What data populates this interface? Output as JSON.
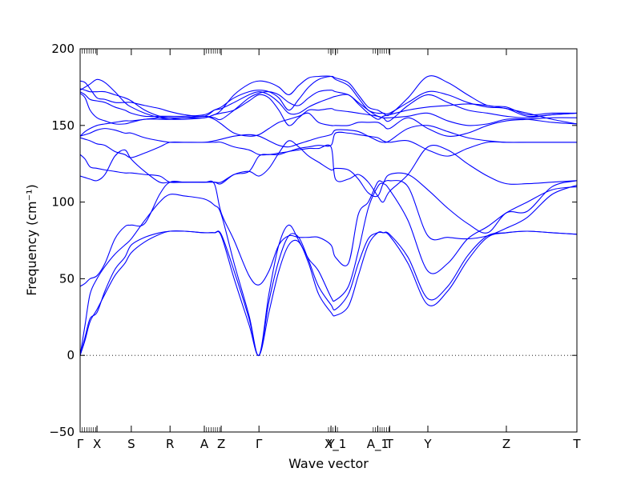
{
  "chart_data": {
    "type": "line",
    "xlabel": "Wave vector",
    "ylabel": "Frequency (cm⁻¹)",
    "ylim": [
      -50,
      200
    ],
    "xlim": [
      0,
      1.0
    ],
    "grid": false,
    "y_ticks": [
      -50,
      0,
      50,
      100,
      150,
      200
    ],
    "x_ticks": [
      {
        "label": "Γ",
        "x": 0.0
      },
      {
        "label": "X",
        "x": 0.034
      },
      {
        "label": "S",
        "x": 0.103
      },
      {
        "label": "R",
        "x": 0.181
      },
      {
        "label": "A",
        "x": 0.25
      },
      {
        "label": "Z",
        "x": 0.284
      },
      {
        "label": "Γ",
        "x": 0.36
      },
      {
        "label": "Y",
        "x": 0.505
      },
      {
        "label": "X_1",
        "x": 0.514
      },
      {
        "label": "A_1",
        "x": 0.599
      },
      {
        "label": "T",
        "x": 0.623
      },
      {
        "label": "Y",
        "x": 0.7
      },
      {
        "label": "Z",
        "x": 0.858
      },
      {
        "label": "T",
        "x": 1.0
      }
    ],
    "zero_line": {
      "y": 0,
      "style": "dotted"
    },
    "line_color": "#0000ff",
    "series": [
      {
        "x": [
          0.0,
          0.01,
          0.02,
          0.034,
          0.05,
          0.07,
          0.09,
          0.103,
          0.13,
          0.16,
          0.181,
          0.21,
          0.25,
          0.27,
          0.284,
          0.31,
          0.34,
          0.36,
          0.38,
          0.4,
          0.42,
          0.44,
          0.46,
          0.48,
          0.505,
          0.514,
          0.54,
          0.56,
          0.58,
          0.599,
          0.61,
          0.623,
          0.66,
          0.7,
          0.74,
          0.78,
          0.82,
          0.858,
          0.9,
          0.95,
          1.0
        ],
        "y": [
          0,
          10,
          22,
          30,
          40,
          52,
          60,
          67,
          74,
          79,
          81,
          81,
          80,
          80,
          78,
          50,
          20,
          0,
          28,
          55,
          72,
          74,
          60,
          40,
          28,
          26,
          32,
          52,
          72,
          80,
          80,
          78,
          60,
          33,
          42,
          62,
          77,
          80,
          81,
          80,
          79
        ]
      },
      {
        "x": [
          0.0,
          0.01,
          0.02,
          0.034,
          0.05,
          0.07,
          0.09,
          0.103,
          0.13,
          0.16,
          0.181,
          0.21,
          0.25,
          0.27,
          0.284,
          0.31,
          0.34,
          0.36,
          0.38,
          0.4,
          0.42,
          0.44,
          0.46,
          0.48,
          0.505,
          0.514,
          0.54,
          0.56,
          0.58,
          0.599,
          0.61,
          0.623,
          0.66,
          0.7,
          0.74,
          0.78,
          0.82,
          0.858,
          0.9,
          0.95,
          1.0
        ],
        "y": [
          0,
          12,
          24,
          28,
          42,
          56,
          64,
          72,
          77,
          80,
          81,
          81,
          80,
          80,
          79,
          55,
          24,
          0,
          35,
          62,
          78,
          77,
          62,
          45,
          33,
          30,
          40,
          60,
          76,
          80,
          80,
          79,
          64,
          37,
          45,
          65,
          78,
          80,
          81,
          80,
          79
        ]
      },
      {
        "x": [
          0.0,
          0.01,
          0.02,
          0.034,
          0.05,
          0.07,
          0.09,
          0.103,
          0.13,
          0.16,
          0.181,
          0.21,
          0.25,
          0.27,
          0.284,
          0.31,
          0.34,
          0.36,
          0.38,
          0.4,
          0.42,
          0.44,
          0.46,
          0.48,
          0.505,
          0.514,
          0.54,
          0.56,
          0.58,
          0.599,
          0.61,
          0.623,
          0.66,
          0.7,
          0.74,
          0.78,
          0.82,
          0.858,
          0.9,
          0.95,
          1.0
        ],
        "y": [
          0,
          20,
          40,
          50,
          58,
          66,
          72,
          76,
          88,
          100,
          105,
          104,
          102,
          98,
          92,
          60,
          26,
          0,
          40,
          72,
          85,
          75,
          63,
          55,
          38,
          36,
          45,
          68,
          96,
          110,
          112,
          108,
          88,
          55,
          60,
          76,
          84,
          93,
          100,
          108,
          110
        ]
      },
      {
        "x": [
          0.0,
          0.01,
          0.02,
          0.034,
          0.05,
          0.07,
          0.09,
          0.103,
          0.13,
          0.16,
          0.181,
          0.21,
          0.25,
          0.27,
          0.284,
          0.31,
          0.34,
          0.36,
          0.38,
          0.4,
          0.42,
          0.44,
          0.46,
          0.48,
          0.505,
          0.514,
          0.54,
          0.56,
          0.58,
          0.599,
          0.61,
          0.623,
          0.66,
          0.7,
          0.74,
          0.78,
          0.82,
          0.858,
          0.9,
          0.95,
          1.0
        ],
        "y": [
          45,
          47,
          50,
          52,
          60,
          76,
          84,
          85,
          86,
          105,
          113,
          113,
          113,
          112,
          93,
          75,
          52,
          46,
          55,
          72,
          78,
          77,
          77,
          77,
          72,
          64,
          60,
          92,
          100,
          113,
          113,
          114,
          110,
          78,
          77,
          76,
          78,
          83,
          90,
          105,
          111
        ]
      },
      {
        "x": [
          0.0,
          0.01,
          0.02,
          0.034,
          0.05,
          0.07,
          0.09,
          0.103,
          0.13,
          0.16,
          0.181,
          0.21,
          0.25,
          0.27,
          0.284,
          0.31,
          0.34,
          0.36,
          0.38,
          0.4,
          0.42,
          0.44,
          0.46,
          0.48,
          0.505,
          0.514,
          0.54,
          0.56,
          0.58,
          0.599,
          0.61,
          0.623,
          0.66,
          0.7,
          0.74,
          0.78,
          0.82,
          0.858,
          0.9,
          0.95,
          1.0
        ],
        "y": [
          117,
          116,
          115,
          114,
          118,
          130,
          134,
          128,
          120,
          113,
          113,
          113,
          113,
          113,
          112,
          118,
          120,
          117,
          122,
          132,
          140,
          136,
          130,
          126,
          121,
          122,
          121,
          115,
          106,
          104,
          112,
          118,
          118,
          108,
          96,
          86,
          80,
          93,
          94,
          110,
          114
        ]
      },
      {
        "x": [
          0.0,
          0.01,
          0.02,
          0.034,
          0.05,
          0.07,
          0.09,
          0.103,
          0.13,
          0.16,
          0.181,
          0.21,
          0.25,
          0.27,
          0.284,
          0.31,
          0.34,
          0.36,
          0.38,
          0.4,
          0.42,
          0.44,
          0.46,
          0.48,
          0.505,
          0.514,
          0.54,
          0.56,
          0.58,
          0.599,
          0.61,
          0.623,
          0.66,
          0.7,
          0.74,
          0.78,
          0.82,
          0.858,
          0.9,
          0.95,
          1.0
        ],
        "y": [
          131,
          128,
          123,
          122,
          121,
          120,
          119,
          119,
          118,
          117,
          113,
          113,
          113,
          113,
          113,
          118,
          120,
          130,
          131,
          131,
          133,
          134,
          135,
          135,
          136,
          115,
          115,
          118,
          113,
          104,
          100,
          107,
          118,
          136,
          134,
          125,
          117,
          112,
          112,
          113,
          114
        ]
      },
      {
        "x": [
          0.0,
          0.01,
          0.02,
          0.034,
          0.05,
          0.07,
          0.09,
          0.103,
          0.13,
          0.16,
          0.181,
          0.21,
          0.25,
          0.27,
          0.284,
          0.31,
          0.34,
          0.36,
          0.38,
          0.4,
          0.42,
          0.44,
          0.46,
          0.48,
          0.505,
          0.514,
          0.54,
          0.56,
          0.58,
          0.599,
          0.61,
          0.623,
          0.66,
          0.7,
          0.74,
          0.78,
          0.82,
          0.858,
          0.9,
          0.95,
          1.0
        ],
        "y": [
          142,
          141,
          140,
          138,
          137,
          133,
          131,
          129,
          132,
          136,
          139,
          139,
          139,
          139,
          139,
          136,
          134,
          131,
          131,
          132,
          133,
          135,
          136,
          137,
          137,
          145,
          145,
          144,
          143,
          142,
          140,
          139,
          140,
          134,
          130,
          135,
          139,
          139,
          139,
          139,
          139
        ]
      },
      {
        "x": [
          0.0,
          0.01,
          0.02,
          0.034,
          0.05,
          0.07,
          0.09,
          0.103,
          0.13,
          0.16,
          0.181,
          0.21,
          0.25,
          0.27,
          0.284,
          0.31,
          0.34,
          0.36,
          0.38,
          0.4,
          0.42,
          0.44,
          0.46,
          0.48,
          0.505,
          0.514,
          0.54,
          0.56,
          0.58,
          0.599,
          0.61,
          0.623,
          0.66,
          0.7,
          0.74,
          0.78,
          0.82,
          0.858,
          0.9,
          0.95,
          1.0
        ],
        "y": [
          143,
          144,
          145,
          147,
          148,
          147,
          145,
          145,
          142,
          140,
          139,
          139,
          139,
          140,
          141,
          143,
          144,
          143,
          140,
          137,
          136,
          138,
          140,
          142,
          144,
          147,
          147,
          146,
          143,
          140,
          139,
          140,
          148,
          150,
          146,
          142,
          140,
          139,
          139,
          139,
          139
        ]
      },
      {
        "x": [
          0.0,
          0.01,
          0.02,
          0.034,
          0.05,
          0.07,
          0.09,
          0.103,
          0.13,
          0.16,
          0.181,
          0.21,
          0.25,
          0.27,
          0.284,
          0.31,
          0.34,
          0.36,
          0.38,
          0.4,
          0.42,
          0.44,
          0.46,
          0.48,
          0.505,
          0.514,
          0.54,
          0.56,
          0.58,
          0.599,
          0.61,
          0.623,
          0.66,
          0.7,
          0.74,
          0.78,
          0.82,
          0.858,
          0.9,
          0.95,
          1.0
        ],
        "y": [
          143,
          146,
          148,
          150,
          151,
          152,
          153,
          153,
          154,
          155,
          155,
          155,
          156,
          154,
          151,
          145,
          143,
          144,
          148,
          152,
          154,
          156,
          158,
          152,
          150,
          150,
          150,
          152,
          152,
          152,
          150,
          148,
          155,
          148,
          143,
          145,
          150,
          153,
          154,
          155,
          155
        ]
      },
      {
        "x": [
          0.0,
          0.01,
          0.02,
          0.034,
          0.05,
          0.07,
          0.09,
          0.103,
          0.13,
          0.16,
          0.181,
          0.21,
          0.25,
          0.27,
          0.284,
          0.31,
          0.34,
          0.36,
          0.38,
          0.4,
          0.42,
          0.44,
          0.46,
          0.48,
          0.505,
          0.514,
          0.54,
          0.56,
          0.58,
          0.599,
          0.61,
          0.623,
          0.66,
          0.7,
          0.74,
          0.78,
          0.82,
          0.858,
          0.9,
          0.95,
          1.0
        ],
        "y": [
          171,
          168,
          160,
          155,
          153,
          151,
          151,
          152,
          154,
          154,
          154,
          155,
          155,
          157,
          158,
          160,
          166,
          170,
          168,
          160,
          150,
          155,
          160,
          160,
          161,
          160,
          159,
          158,
          157,
          156,
          155,
          155,
          156,
          158,
          153,
          150,
          151,
          154,
          154,
          152,
          151
        ]
      },
      {
        "x": [
          0.0,
          0.01,
          0.02,
          0.034,
          0.05,
          0.07,
          0.09,
          0.103,
          0.13,
          0.16,
          0.181,
          0.21,
          0.25,
          0.27,
          0.284,
          0.31,
          0.34,
          0.36,
          0.38,
          0.4,
          0.42,
          0.44,
          0.46,
          0.48,
          0.505,
          0.514,
          0.54,
          0.56,
          0.58,
          0.599,
          0.61,
          0.623,
          0.66,
          0.7,
          0.74,
          0.78,
          0.82,
          0.858,
          0.9,
          0.95,
          1.0
        ],
        "y": [
          172,
          170,
          167,
          166,
          165,
          162,
          160,
          158,
          156,
          156,
          156,
          156,
          157,
          160,
          161,
          165,
          170,
          172,
          170,
          165,
          158,
          158,
          162,
          165,
          168,
          169,
          170,
          164,
          158,
          154,
          156,
          157,
          160,
          162,
          163,
          164,
          163,
          161,
          158,
          154,
          151
        ]
      },
      {
        "x": [
          0.0,
          0.01,
          0.02,
          0.034,
          0.05,
          0.07,
          0.09,
          0.103,
          0.13,
          0.16,
          0.181,
          0.21,
          0.25,
          0.27,
          0.284,
          0.31,
          0.34,
          0.36,
          0.38,
          0.4,
          0.42,
          0.44,
          0.46,
          0.48,
          0.505,
          0.514,
          0.54,
          0.56,
          0.58,
          0.599,
          0.61,
          0.623,
          0.66,
          0.7,
          0.74,
          0.78,
          0.82,
          0.858,
          0.9,
          0.95,
          1.0
        ],
        "y": [
          174,
          173,
          172,
          172,
          172,
          170,
          168,
          166,
          160,
          156,
          155,
          155,
          156,
          155,
          154,
          160,
          168,
          171,
          172,
          170,
          165,
          163,
          168,
          172,
          173,
          172,
          170,
          165,
          160,
          156,
          155,
          153,
          163,
          170,
          165,
          160,
          158,
          156,
          155,
          157,
          158
        ]
      },
      {
        "x": [
          0.0,
          0.01,
          0.02,
          0.034,
          0.05,
          0.07,
          0.09,
          0.103,
          0.13,
          0.16,
          0.181,
          0.21,
          0.25,
          0.27,
          0.284,
          0.31,
          0.34,
          0.36,
          0.38,
          0.4,
          0.42,
          0.44,
          0.46,
          0.48,
          0.505,
          0.514,
          0.54,
          0.56,
          0.58,
          0.599,
          0.61,
          0.623,
          0.66,
          0.7,
          0.74,
          0.78,
          0.82,
          0.858,
          0.9,
          0.95,
          1.0
        ],
        "y": [
          179,
          178,
          174,
          168,
          167,
          165,
          165,
          165,
          163,
          161,
          159,
          157,
          156,
          160,
          162,
          168,
          172,
          173,
          172,
          168,
          160,
          167,
          175,
          180,
          182,
          181,
          178,
          170,
          162,
          160,
          158,
          157,
          168,
          182,
          178,
          170,
          163,
          162,
          157,
          158,
          158
        ]
      },
      {
        "x": [
          0.0,
          0.01,
          0.02,
          0.034,
          0.05,
          0.07,
          0.09,
          0.103,
          0.13,
          0.16,
          0.181,
          0.21,
          0.25,
          0.27,
          0.284,
          0.31,
          0.34,
          0.36,
          0.38,
          0.4,
          0.42,
          0.44,
          0.46,
          0.48,
          0.505,
          0.514,
          0.54,
          0.56,
          0.58,
          0.599,
          0.61,
          0.623,
          0.66,
          0.7,
          0.74,
          0.78,
          0.82,
          0.858,
          0.9,
          0.95,
          1.0
        ],
        "y": [
          173,
          175,
          177,
          180,
          178,
          172,
          165,
          162,
          158,
          155,
          154,
          154,
          155,
          157,
          160,
          170,
          177,
          179,
          178,
          175,
          170,
          176,
          181,
          182,
          182,
          180,
          176,
          168,
          160,
          158,
          158,
          158,
          165,
          172,
          170,
          165,
          162,
          161,
          156,
          157,
          158
        ]
      }
    ]
  }
}
